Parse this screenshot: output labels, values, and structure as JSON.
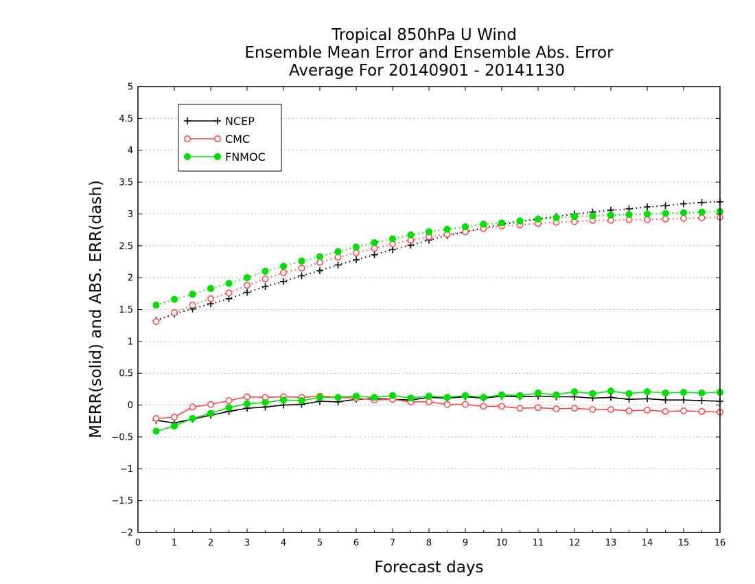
{
  "chart_data": {
    "type": "line",
    "title": [
      "Tropical 850hPa U Wind",
      "Ensemble Mean Error and Ensemble Abs. Error",
      "Average For 20140901 - 20141130"
    ],
    "xlabel": "Forecast days",
    "ylabel": "MERR(solid) and ABS. ERR(dash)",
    "xlim": [
      0,
      16
    ],
    "ylim": [
      -2,
      5
    ],
    "xticks": [
      "0",
      "1",
      "2",
      "3",
      "4",
      "5",
      "6",
      "7",
      "8",
      "9",
      "10",
      "11",
      "12",
      "13",
      "14",
      "15",
      "16"
    ],
    "yticks": [
      "−2",
      "−1.5",
      "−1",
      "−0.5",
      "0",
      "0.5",
      "1",
      "1.5",
      "2",
      "2.5",
      "3",
      "3.5",
      "4",
      "4.5",
      "5"
    ],
    "grid": true,
    "legend_position": "top-left",
    "x": [
      0.5,
      1,
      1.5,
      2,
      2.5,
      3,
      3.5,
      4,
      4.5,
      5,
      5.5,
      6,
      6.5,
      7,
      7.5,
      8,
      8.5,
      9,
      9.5,
      10,
      10.5,
      11,
      11.5,
      12,
      12.5,
      13,
      13.5,
      14,
      14.5,
      15,
      15.5,
      16
    ],
    "series": [
      {
        "name": "NCEP",
        "color": "#000000",
        "marker": "plus",
        "merr": [
          -0.24,
          -0.28,
          -0.22,
          -0.16,
          -0.1,
          -0.05,
          -0.03,
          0.0,
          0.01,
          0.06,
          0.05,
          0.09,
          0.1,
          0.09,
          0.08,
          0.12,
          0.11,
          0.13,
          0.11,
          0.14,
          0.13,
          0.14,
          0.13,
          0.13,
          0.11,
          0.12,
          0.09,
          0.1,
          0.08,
          0.08,
          0.07,
          0.06
        ],
        "abs_err": [
          1.33,
          1.43,
          1.51,
          1.59,
          1.67,
          1.77,
          1.86,
          1.94,
          2.03,
          2.11,
          2.2,
          2.28,
          2.36,
          2.44,
          2.51,
          2.59,
          2.66,
          2.72,
          2.78,
          2.84,
          2.88,
          2.92,
          2.96,
          3.0,
          3.03,
          3.06,
          3.08,
          3.11,
          3.13,
          3.16,
          3.18,
          3.19
        ]
      },
      {
        "name": "CMC",
        "color": "#ff4444",
        "marker": "open-circle",
        "merr": [
          -0.21,
          -0.19,
          -0.03,
          0.01,
          0.07,
          0.13,
          0.12,
          0.13,
          0.12,
          0.14,
          0.12,
          0.11,
          0.08,
          0.09,
          0.05,
          0.05,
          0.01,
          0.01,
          -0.02,
          -0.02,
          -0.05,
          -0.04,
          -0.06,
          -0.05,
          -0.07,
          -0.07,
          -0.09,
          -0.08,
          -0.1,
          -0.09,
          -0.1,
          -0.11
        ],
        "abs_err": [
          1.31,
          1.45,
          1.57,
          1.67,
          1.76,
          1.88,
          1.98,
          2.08,
          2.15,
          2.24,
          2.32,
          2.39,
          2.46,
          2.53,
          2.59,
          2.64,
          2.68,
          2.72,
          2.77,
          2.81,
          2.83,
          2.85,
          2.87,
          2.88,
          2.9,
          2.9,
          2.91,
          2.91,
          2.92,
          2.93,
          2.94,
          2.95
        ]
      },
      {
        "name": "FNMOC",
        "color": "#00dd00",
        "marker": "filled-circle",
        "merr": [
          -0.41,
          -0.33,
          -0.21,
          -0.13,
          -0.04,
          0.02,
          0.04,
          0.08,
          0.07,
          0.12,
          0.12,
          0.14,
          0.12,
          0.15,
          0.11,
          0.14,
          0.12,
          0.15,
          0.12,
          0.16,
          0.15,
          0.19,
          0.16,
          0.21,
          0.18,
          0.22,
          0.18,
          0.21,
          0.19,
          0.2,
          0.19,
          0.2
        ],
        "abs_err": [
          1.57,
          1.66,
          1.74,
          1.83,
          1.91,
          2.0,
          2.1,
          2.18,
          2.26,
          2.33,
          2.41,
          2.48,
          2.55,
          2.61,
          2.67,
          2.72,
          2.76,
          2.8,
          2.84,
          2.86,
          2.89,
          2.92,
          2.94,
          2.96,
          2.97,
          2.98,
          2.99,
          3.0,
          3.01,
          3.02,
          3.03,
          3.04
        ]
      }
    ]
  }
}
